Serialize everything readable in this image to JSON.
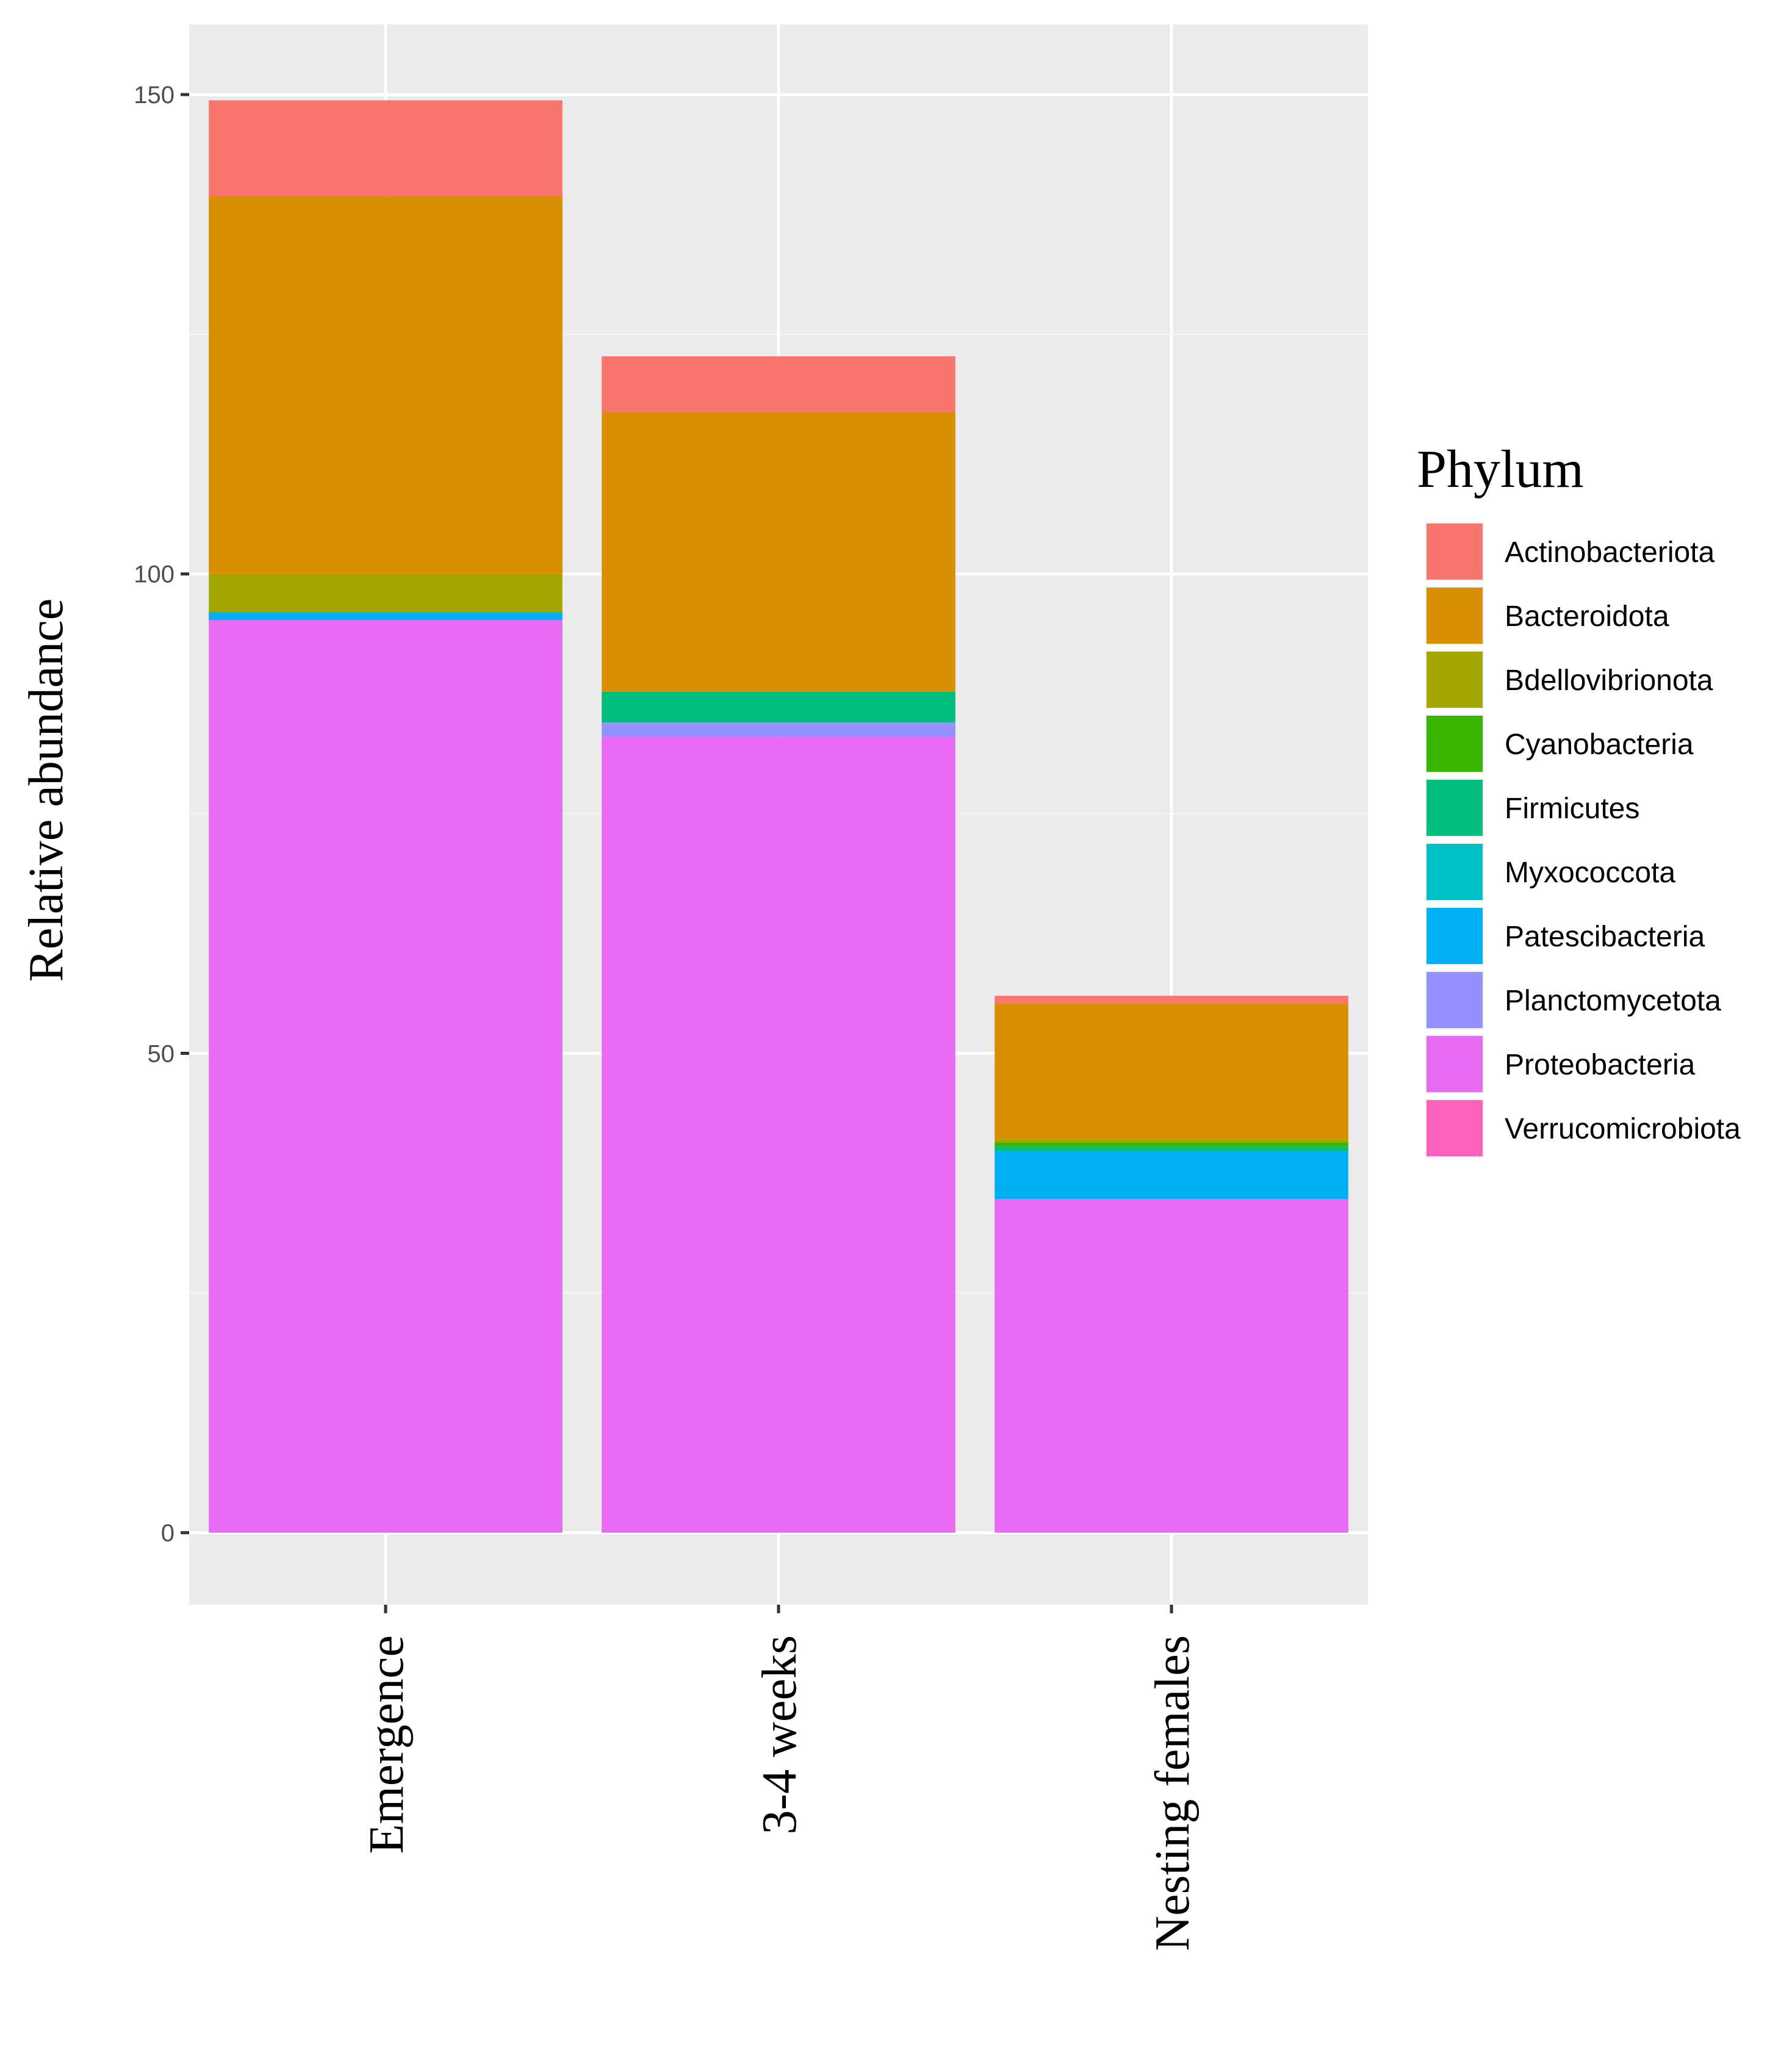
{
  "chart_data": {
    "type": "bar",
    "stacked": true,
    "title": "",
    "xlabel": "",
    "ylabel": "Relative abundance",
    "ylim": [
      -15,
      157
    ],
    "y_ticks": [
      0,
      50,
      100,
      150
    ],
    "grid": true,
    "categories": [
      "Emergence",
      "3-4 weeks",
      "Nesting females"
    ],
    "legend": {
      "title": "Phylum",
      "position": "right"
    },
    "series": [
      {
        "name": "Proteobacteria",
        "color": "#E76BF3",
        "values": [
          95.2,
          83.0,
          34.8
        ]
      },
      {
        "name": "Planctomycetota",
        "color": "#9590FF",
        "values": [
          0,
          1.5,
          0
        ]
      },
      {
        "name": "Patescibacteria",
        "color": "#00B0F6",
        "values": [
          0.8,
          0,
          5.0
        ]
      },
      {
        "name": "Myxococcota",
        "color": "#00BFC4",
        "values": [
          0,
          0,
          0
        ]
      },
      {
        "name": "Firmicutes",
        "color": "#00BF7D",
        "values": [
          0,
          3.2,
          0.5
        ]
      },
      {
        "name": "Cyanobacteria",
        "color": "#39B600",
        "values": [
          0,
          0,
          0.4
        ]
      },
      {
        "name": "Bdellovibrionota",
        "color": "#A3A500",
        "values": [
          4.0,
          0,
          0.3
        ]
      },
      {
        "name": "Bacteroidota",
        "color": "#D89000",
        "values": [
          39.4,
          29.2,
          14.2
        ]
      },
      {
        "name": "Actinobacteriota",
        "color": "#F8766D",
        "values": [
          10.0,
          5.8,
          0.8
        ]
      },
      {
        "name": "Verrucomicrobiota",
        "color": "#FF62BC",
        "values": [
          0,
          0,
          0
        ]
      }
    ],
    "legend_order": [
      "Actinobacteriota",
      "Bacteroidota",
      "Bdellovibrionota",
      "Cyanobacteria",
      "Firmicutes",
      "Myxococcota",
      "Patescibacteria",
      "Planctomycetota",
      "Proteobacteria",
      "Verrucomicrobiota"
    ]
  }
}
